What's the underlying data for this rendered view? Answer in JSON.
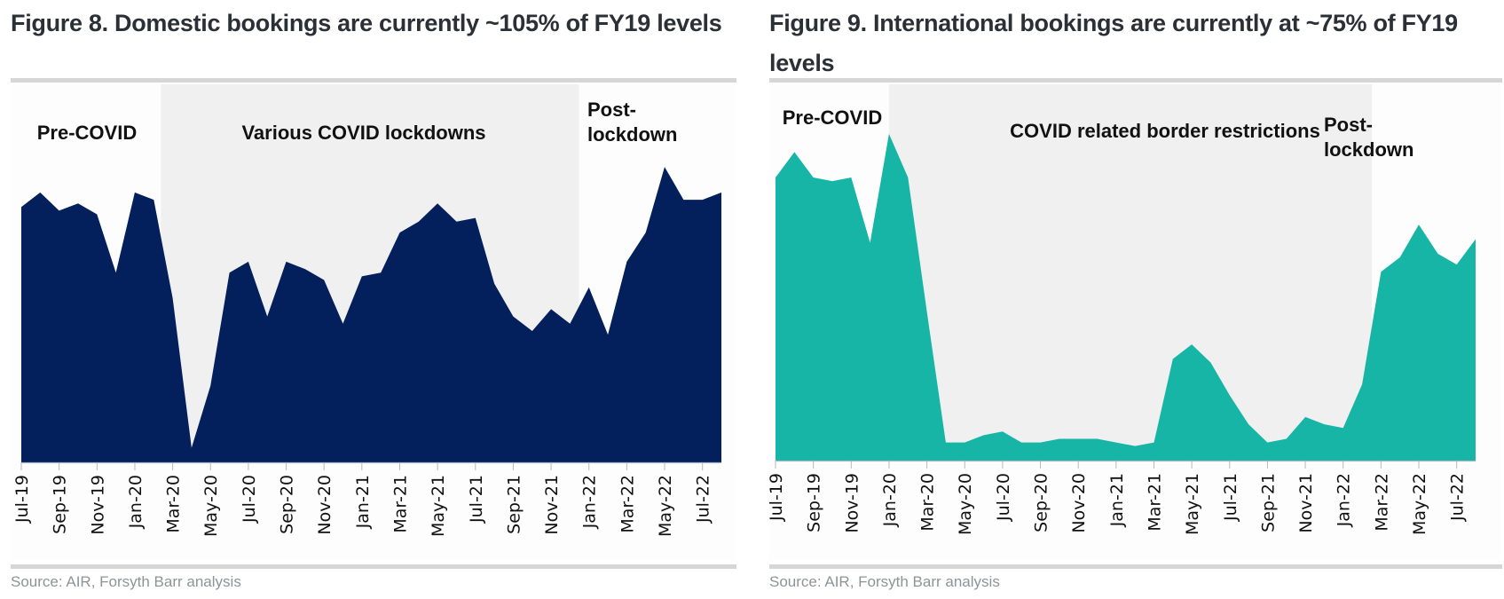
{
  "figures": [
    {
      "title": "Figure 8. Domestic bookings are currently ~105% of FY19 levels",
      "source": "Source: AIR, Forsyth Barr analysis"
    },
    {
      "title": "Figure 9. International bookings are currently at ~75% of FY19 levels",
      "source": "Source: AIR, Forsyth Barr analysis"
    }
  ],
  "colors": {
    "domestic_fill": "#03205c",
    "international_fill": "#17b5a6",
    "shade": "#f0f0f0",
    "rule": "#d6d6d6",
    "source_text": "#8f9399"
  },
  "chart_data": [
    {
      "type": "area",
      "title": "Figure 8. Domestic bookings are currently ~105% of FY19 levels",
      "xlabel": "",
      "ylabel": "",
      "y_axis_note": "no y-axis labels shown; values are relative index estimates (plot top = 100)",
      "ylim": [
        0,
        100
      ],
      "grid": false,
      "x": [
        "Jul-19",
        "Aug-19",
        "Sep-19",
        "Oct-19",
        "Nov-19",
        "Dec-19",
        "Jan-20",
        "Feb-20",
        "Mar-20",
        "Apr-20",
        "May-20",
        "Jun-20",
        "Jul-20",
        "Aug-20",
        "Sep-20",
        "Oct-20",
        "Nov-20",
        "Dec-20",
        "Jan-21",
        "Feb-21",
        "Mar-21",
        "Apr-21",
        "May-21",
        "Jun-21",
        "Jul-21",
        "Aug-21",
        "Sep-21",
        "Oct-21",
        "Nov-21",
        "Dec-21",
        "Jan-22",
        "Feb-22",
        "Mar-22",
        "Apr-22",
        "May-22",
        "Jun-22",
        "Jul-22",
        "Aug-22"
      ],
      "tick_labels": [
        "Jul-19",
        "Sep-19",
        "Nov-19",
        "Jan-20",
        "Mar-20",
        "May-20",
        "Jul-20",
        "Sep-20",
        "Nov-20",
        "Jan-21",
        "Mar-21",
        "May-21",
        "Jul-21",
        "Sep-21",
        "Nov-21",
        "Jan-22",
        "Mar-22",
        "May-22",
        "Jul-22"
      ],
      "series": [
        {
          "name": "Domestic bookings",
          "values": [
            70,
            74,
            69,
            71,
            68,
            52,
            74,
            72,
            45,
            4,
            21,
            52,
            55,
            40,
            55,
            53,
            50,
            38,
            51,
            52,
            63,
            66,
            71,
            66,
            67,
            49,
            40,
            36,
            42,
            38,
            48,
            35,
            55,
            63,
            81,
            72,
            72,
            74
          ]
        }
      ],
      "regions": [
        {
          "label": "Pre-COVID",
          "from": "Jul-19",
          "to": "Feb-20",
          "shaded": false
        },
        {
          "label": "Various COVID lockdowns",
          "from": "Feb-20",
          "to": "Dec-21",
          "shaded": true
        },
        {
          "label": "Post-lockdown",
          "from": "Dec-21",
          "to": "Aug-22",
          "shaded": false
        }
      ]
    },
    {
      "type": "area",
      "title": "Figure 9. International bookings are currently at ~75% of FY19 levels",
      "xlabel": "",
      "ylabel": "",
      "y_axis_note": "no y-axis labels shown; values are relative index estimates (plot top = 100)",
      "ylim": [
        0,
        100
      ],
      "grid": false,
      "x": [
        "Jul-19",
        "Aug-19",
        "Sep-19",
        "Oct-19",
        "Nov-19",
        "Dec-19",
        "Jan-20",
        "Feb-20",
        "Mar-20",
        "Apr-20",
        "May-20",
        "Jun-20",
        "Jul-20",
        "Aug-20",
        "Sep-20",
        "Oct-20",
        "Nov-20",
        "Dec-20",
        "Jan-21",
        "Feb-21",
        "Mar-21",
        "Apr-21",
        "May-21",
        "Jun-21",
        "Jul-21",
        "Aug-21",
        "Sep-21",
        "Oct-21",
        "Nov-21",
        "Dec-21",
        "Jan-22",
        "Feb-22",
        "Mar-22",
        "Apr-22",
        "May-22",
        "Jun-22",
        "Jul-22",
        "Aug-22"
      ],
      "tick_labels": [
        "Jul-19",
        "Sep-19",
        "Nov-19",
        "Jan-20",
        "Mar-20",
        "May-20",
        "Jul-20",
        "Sep-20",
        "Nov-20",
        "Jan-21",
        "Mar-21",
        "May-21",
        "Jul-21",
        "Sep-21",
        "Nov-21",
        "Jan-22",
        "Mar-22",
        "May-22",
        "Jul-22"
      ],
      "series": [
        {
          "name": "International bookings",
          "values": [
            78,
            85,
            78,
            77,
            78,
            60,
            90,
            78,
            41,
            5,
            5,
            7,
            8,
            5,
            5,
            6,
            6,
            6,
            5,
            4,
            5,
            28,
            32,
            27,
            18,
            10,
            5,
            6,
            12,
            10,
            9,
            21,
            52,
            56,
            65,
            57,
            54,
            61
          ]
        }
      ],
      "regions": [
        {
          "label": "Pre-COVID",
          "from": "Jul-19",
          "to": "Jan-20",
          "shaded": false
        },
        {
          "label": "COVID related border restrictions",
          "from": "Jan-20",
          "to": "Feb-22",
          "shaded": true
        },
        {
          "label": "Post-lockdown",
          "from": "Feb-22",
          "to": "Aug-22",
          "shaded": false
        }
      ]
    }
  ]
}
